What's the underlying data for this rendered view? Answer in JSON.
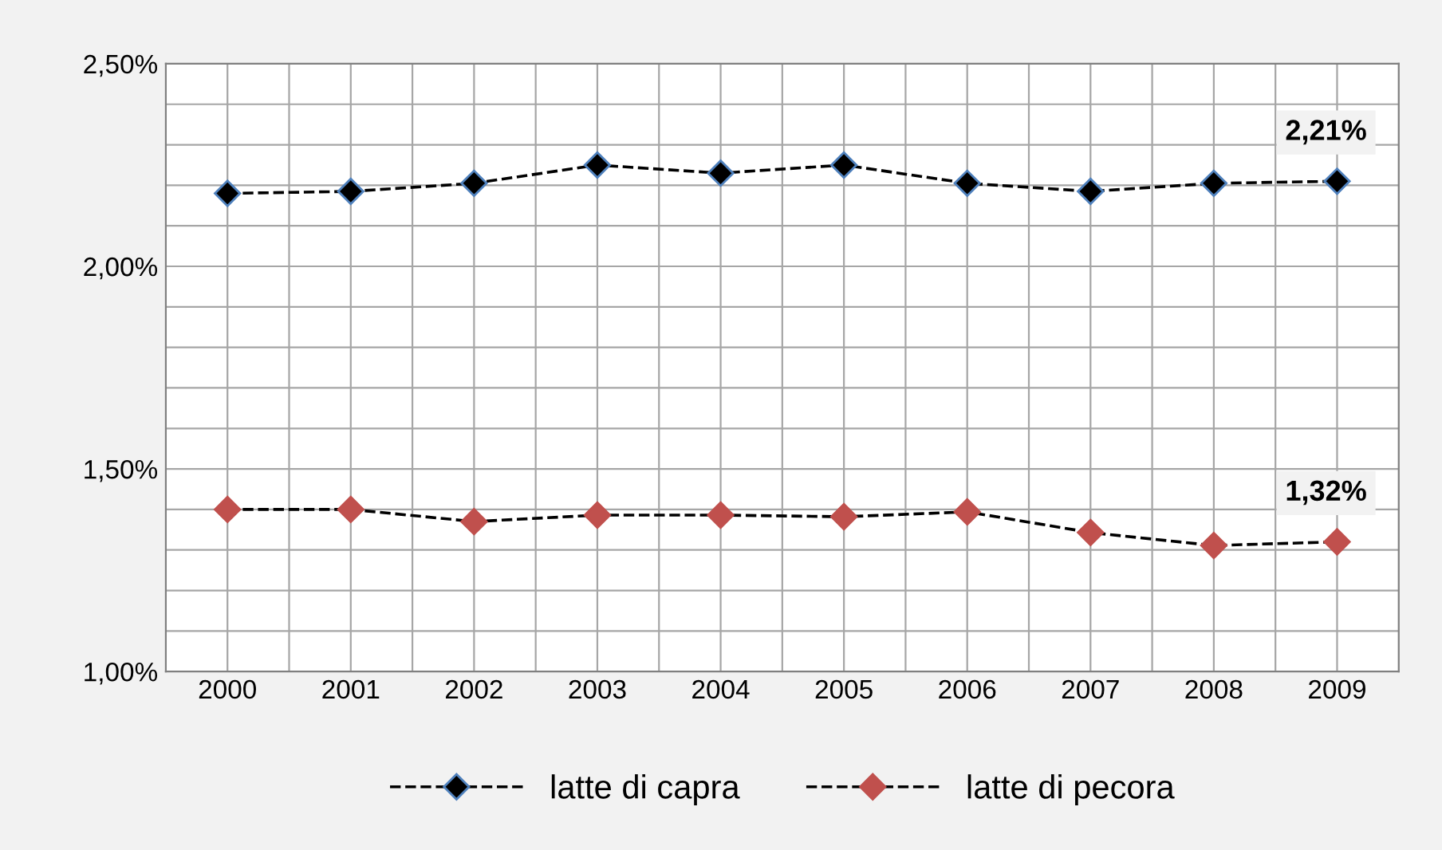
{
  "chart_data": {
    "type": "line",
    "categories": [
      "2000",
      "2001",
      "2002",
      "2003",
      "2004",
      "2005",
      "2006",
      "2007",
      "2008",
      "2009"
    ],
    "series": [
      {
        "name": "latte di capra",
        "color": "#000000",
        "values": [
          2.18,
          2.185,
          2.205,
          2.25,
          2.23,
          2.25,
          2.205,
          2.185,
          2.205,
          2.21
        ],
        "value_labels": [
          null,
          null,
          null,
          null,
          null,
          null,
          null,
          null,
          null,
          "2,21%"
        ]
      },
      {
        "name": "latte di pecora",
        "color": "#c0504d",
        "values": [
          1.4,
          1.4,
          1.37,
          1.386,
          1.386,
          1.382,
          1.394,
          1.343,
          1.311,
          1.32
        ],
        "value_labels": [
          null,
          null,
          null,
          null,
          null,
          null,
          null,
          null,
          null,
          "1,32%"
        ]
      }
    ],
    "ylim": [
      1.0,
      2.5
    ],
    "yticks": [
      {
        "value": 1.0,
        "label": "1,00%"
      },
      {
        "value": 1.1,
        "label": null
      },
      {
        "value": 1.2,
        "label": null
      },
      {
        "value": 1.3,
        "label": null
      },
      {
        "value": 1.4,
        "label": null
      },
      {
        "value": 1.5,
        "label": "1,50%"
      },
      {
        "value": 1.6,
        "label": null
      },
      {
        "value": 1.7,
        "label": null
      },
      {
        "value": 1.8,
        "label": null
      },
      {
        "value": 1.9,
        "label": null
      },
      {
        "value": 2.0,
        "label": "2,00%"
      },
      {
        "value": 2.1,
        "label": null
      },
      {
        "value": 2.2,
        "label": null
      },
      {
        "value": 2.3,
        "label": null
      },
      {
        "value": 2.4,
        "label": null
      },
      {
        "value": 2.5,
        "label": "2,50%"
      }
    ],
    "grid": true,
    "legend": "bottom",
    "marker": "diamond",
    "line_style": "dashed"
  }
}
